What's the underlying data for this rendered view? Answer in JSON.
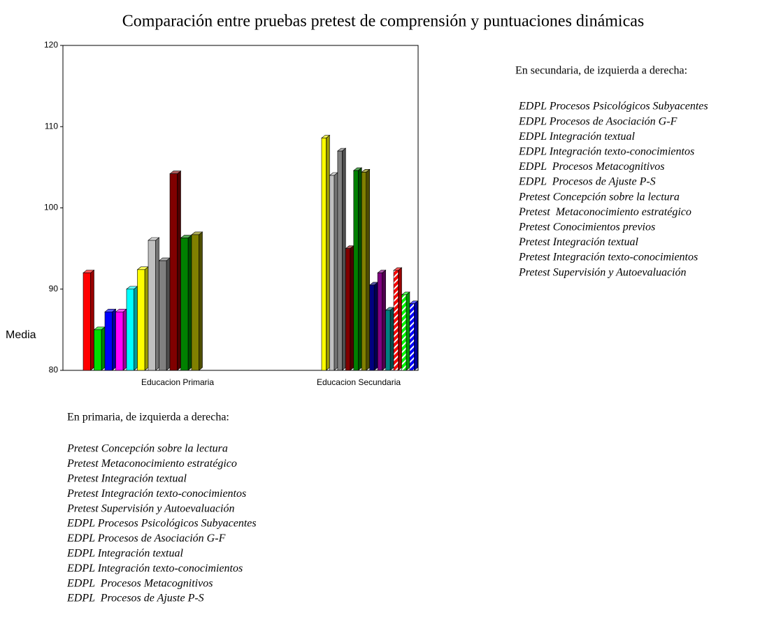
{
  "chart_data": {
    "type": "bar3d",
    "title": "Comparación entre pruebas pretest de comprensión y puntuaciones dinámicas",
    "y_label": "Media",
    "ylim": [
      80,
      120
    ],
    "yticks": [
      80,
      90,
      100,
      110,
      120
    ],
    "groups": [
      {
        "category": "Educacion Primaria",
        "bars": [
          {
            "value": 92,
            "color": "#ff0000"
          },
          {
            "value": 85,
            "color": "#00e000"
          },
          {
            "value": 87.2,
            "color": "#0000ff"
          },
          {
            "value": 87.2,
            "color": "#ff00ff"
          },
          {
            "value": 90,
            "color": "#00ffff"
          },
          {
            "value": 92.4,
            "color": "#ffff00"
          },
          {
            "value": 96,
            "color": "#c0c0c0"
          },
          {
            "value": 93.5,
            "color": "#808080"
          },
          {
            "value": 104.2,
            "color": "#800000"
          },
          {
            "value": 96.3,
            "color": "#008000"
          },
          {
            "value": 96.7,
            "color": "#808000"
          }
        ]
      },
      {
        "category": "Educacion Secundaria",
        "bars": [
          {
            "value": 108.6,
            "color": "#ffff00"
          },
          {
            "value": 104,
            "color": "#c0c0c0"
          },
          {
            "value": 107,
            "color": "#808080"
          },
          {
            "value": 95,
            "color": "#800000"
          },
          {
            "value": 104.6,
            "color": "#008000"
          },
          {
            "value": 104.4,
            "color": "#808000"
          },
          {
            "value": 90.5,
            "color": "#000080"
          },
          {
            "value": 92,
            "color": "#800080"
          },
          {
            "value": 87.4,
            "color": "#008080"
          },
          {
            "value": 92.3,
            "color": "#ff0000",
            "hatch": true
          },
          {
            "value": 89.3,
            "color": "#00ff00",
            "hatch": true
          },
          {
            "value": 88.2,
            "color": "#0000ff",
            "hatch": true
          }
        ]
      }
    ]
  },
  "notes": [
    {
      "heading": "En secundaria, de izquierda a derecha:",
      "items": [
        "EDPL Procesos Psicológicos Subyacentes",
        "EDPL Procesos de Asociación G-F",
        "EDPL Integración textual",
        "EDPL Integración texto-conocimientos",
        "EDPL  Procesos Metacognitivos",
        "EDPL  Procesos de Ajuste P-S",
        "Pretest Concepción sobre la lectura",
        "Pretest  Metaconocimiento estratégico",
        "Pretest Conocimientos previos",
        "Pretest Integración textual",
        "Pretest Integración texto-conocimientos",
        "Pretest Supervisión y Autoevaluación"
      ]
    },
    {
      "heading": "En primaria, de izquierda a derecha:",
      "items": [
        "Pretest Concepción sobre la lectura",
        "Pretest Metaconocimiento estratégico",
        "Pretest Integración textual",
        "Pretest Integración texto-conocimientos",
        "Pretest Supervisión y Autoevaluación",
        "EDPL Procesos Psicológicos Subyacentes",
        "EDPL Procesos de Asociación G-F",
        "EDPL Integración textual",
        "EDPL Integración texto-conocimientos",
        "EDPL  Procesos Metacognitivos",
        "EDPL  Procesos de Ajuste P-S"
      ]
    }
  ]
}
